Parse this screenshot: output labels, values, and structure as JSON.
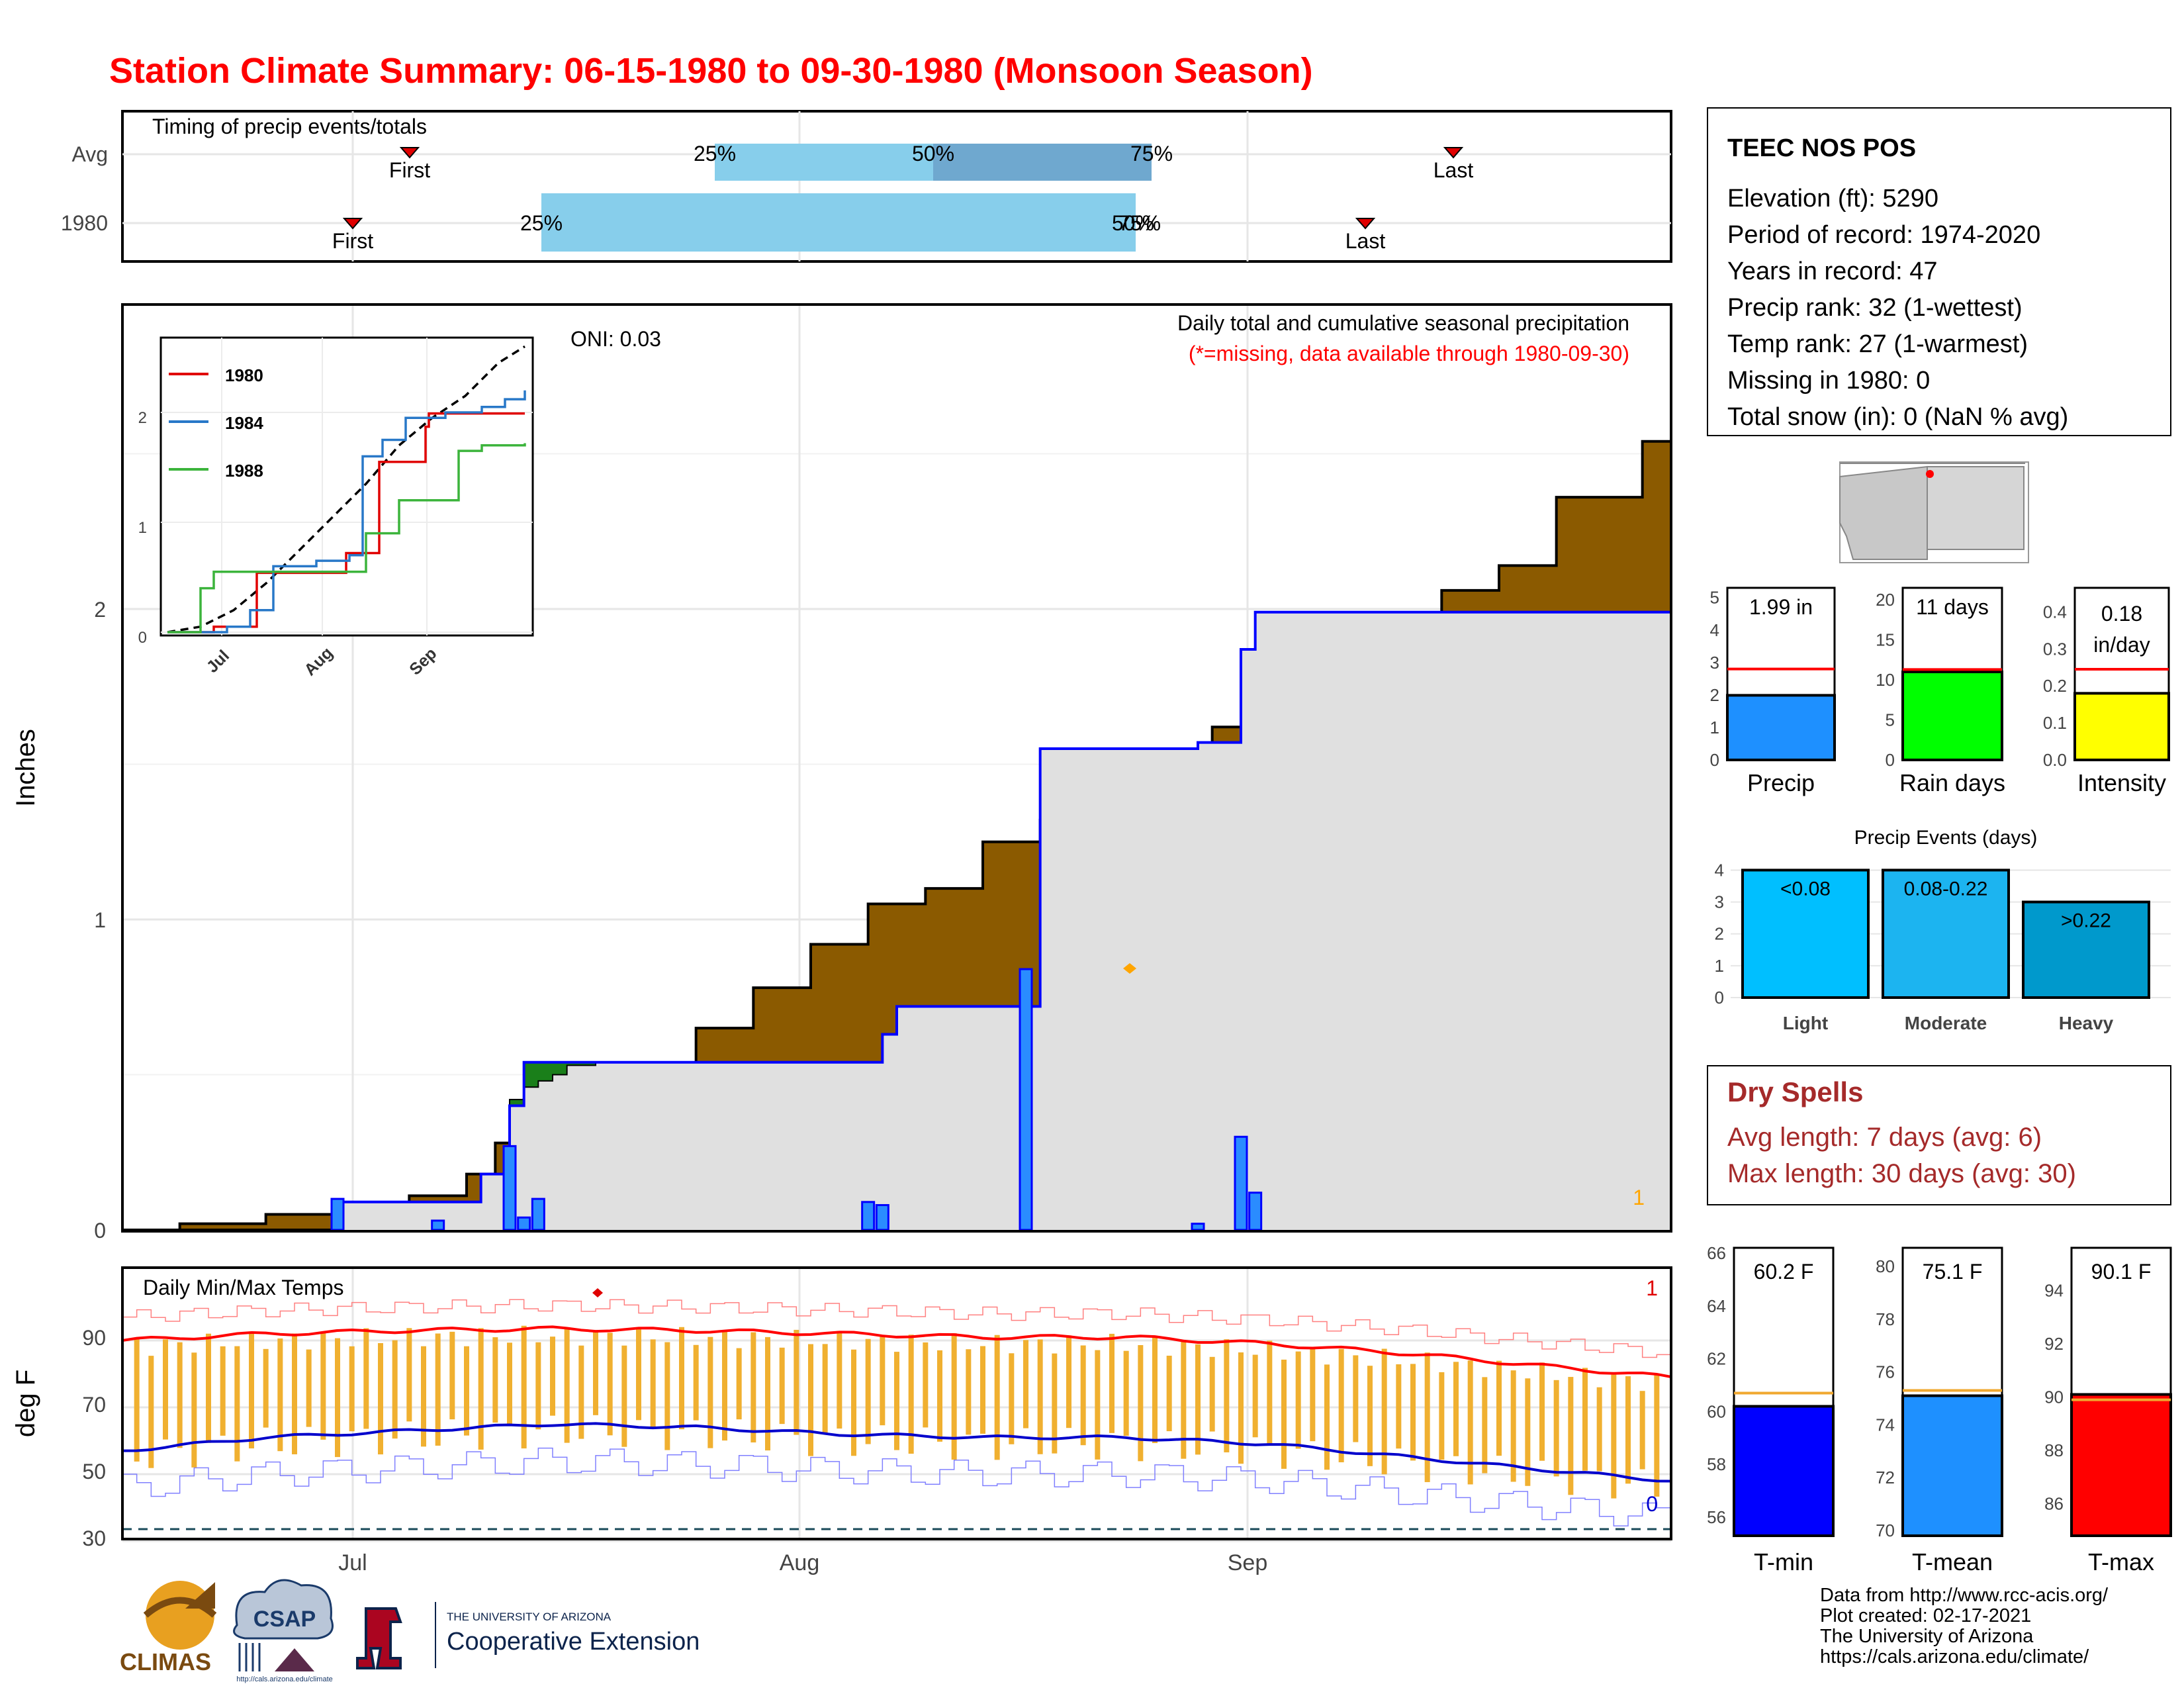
{
  "title": "Station Climate Summary: 06-15-1980 to 09-30-1980 (Monsoon Season)",
  "colors": {
    "title": "#ff0000",
    "cum_area": "#8b5a00",
    "cum_green": "#1a7f1a",
    "current_fill": "#e0e0e0",
    "current_line": "#0000ff",
    "bars": "#2a8cff",
    "timing_light": "#87ceeb",
    "timing_dark": "#6fa8cf",
    "temp_bar": "#f0b030",
    "tmax_line": "#ff0000",
    "tmin_line": "#0000cc",
    "precip_bar": "#1e90ff",
    "raindays_bar": "#00ff00",
    "intensity_bar": "#ffff00",
    "light_bar": "#00bfff",
    "moderate_bar": "#1cb4f0",
    "heavy_bar": "#0099cc",
    "tmin_bar": "#0000ff",
    "tmean_bar": "#1e90ff",
    "tmax_bar": "#ff0000",
    "dry_spell_text": "#a52a2a"
  },
  "timing": {
    "title": "Timing of precip events/totals",
    "rows": [
      {
        "label": "Avg",
        "first": "First",
        "last": "Last",
        "p25": "25%",
        "p50": "50%",
        "p75": "75%"
      },
      {
        "label": "1980",
        "first": "First",
        "last": "Last",
        "p25": "25%",
        "p50": "50%",
        "p75": "75%"
      }
    ]
  },
  "main": {
    "y_axis_label": "Inches",
    "y_ticks": [
      "0",
      "1",
      "2"
    ],
    "x_ticks": [
      "Jul",
      "Aug",
      "Sep"
    ],
    "oni": "ONI: 0.03",
    "title": "Daily total and cumulative seasonal precipitation",
    "subtitle": "(*=missing, data available through 1980-09-30)",
    "count_label": "1"
  },
  "inset": {
    "legend": [
      "1980",
      "1984",
      "1988"
    ],
    "y_ticks": [
      "0",
      "1",
      "2"
    ],
    "x_ticks": [
      "Jul",
      "Aug",
      "Sep"
    ]
  },
  "temps": {
    "title": "Daily Min/Max Temps",
    "y_axis_label": "deg F",
    "y_ticks": [
      "90",
      "70",
      "50",
      "30"
    ],
    "record_high_count": "1",
    "record_low_count": "0",
    "x_ticks": [
      "Jul",
      "Aug",
      "Sep"
    ]
  },
  "station": {
    "name": "TEEC NOS POS",
    "lines": [
      "Elevation (ft): 5290",
      "Period of record: 1974-2020",
      "Years in record: 47",
      "Precip rank: 32 (1-wettest)",
      "Temp rank: 27 (1-warmest)",
      "Missing in 1980: 0",
      "Total snow (in): 0 (NaN % avg)"
    ]
  },
  "summary_bars": {
    "precip": {
      "label": "Precip",
      "value_text": "1.99 in",
      "value": 1.99,
      "avg": 2.8,
      "ticks": [
        "5",
        "4",
        "3",
        "2",
        "1",
        "0"
      ]
    },
    "rain_days": {
      "label": "Rain days",
      "value_text": "11 days",
      "value": 11,
      "avg": 11.3,
      "ticks": [
        "20",
        "15",
        "10",
        "5",
        "0"
      ]
    },
    "intensity": {
      "label": "Intensity",
      "value_text_1": "0.18",
      "value_text_2": "in/day",
      "value": 0.18,
      "avg": 0.245,
      "ticks": [
        "0.4",
        "0.3",
        "0.2",
        "0.1",
        "0.0"
      ]
    }
  },
  "events": {
    "title": "Precip Events (days)",
    "ticks": [
      "4",
      "3",
      "2",
      "1",
      "0"
    ],
    "bars": [
      {
        "label": "Light",
        "range": "<0.08",
        "value": 4
      },
      {
        "label": "Moderate",
        "range": "0.08-0.22",
        "value": 4
      },
      {
        "label": "Heavy",
        "range": ">0.22",
        "value": 3
      }
    ]
  },
  "dry_spells": {
    "title": "Dry Spells",
    "avg": "Avg length: 7 days (avg: 6)",
    "max": "Max length: 30 days (avg: 30)"
  },
  "temp_bars": {
    "tmin": {
      "label": "T-min",
      "value_text": "60.2 F",
      "value": 60.2,
      "avg": 60.7,
      "ticks": [
        "66",
        "64",
        "62",
        "60",
        "58",
        "56"
      ]
    },
    "tmean": {
      "label": "T-mean",
      "value_text": "75.1 F",
      "value": 75.1,
      "avg": 75.3,
      "ticks": [
        "80",
        "78",
        "76",
        "74",
        "72",
        "70"
      ]
    },
    "tmax": {
      "label": "T-max",
      "value_text": "90.1 F",
      "value": 90.1,
      "avg": 89.9,
      "ticks": [
        "94",
        "92",
        "90",
        "88",
        "86"
      ]
    }
  },
  "logos": {
    "climas": "CLIMAS",
    "csap": "CSAP",
    "csap_url": "http://cals.arizona.edu/climate",
    "ua_small": "THE UNIVERSITY OF ARIZONA",
    "ua_big": "Cooperative Extension"
  },
  "footer": [
    "Data from http://www.rcc-acis.org/",
    "Plot created: 02-17-2021",
    "The University of Arizona",
    "https://cals.arizona.edu/climate/"
  ],
  "chart_data": [
    {
      "type": "area",
      "title": "Daily total and cumulative seasonal precipitation",
      "xlabel": "",
      "ylabel": "Inches",
      "x_categories": [
        "Jul",
        "Aug",
        "Sep"
      ],
      "ylim": [
        0,
        2.9
      ],
      "series": [
        {
          "values": [
            [
              0,
              0
            ],
            [
              4,
              0.02
            ],
            [
              10,
              0.05
            ],
            [
              16,
              0.08
            ],
            [
              20,
              0.11
            ],
            [
              24,
              0.18
            ],
            [
              26,
              0.28
            ],
            [
              28,
              0.42
            ],
            [
              30,
              0.48
            ],
            [
              33,
              0.53
            ],
            [
              40,
              0.65
            ],
            [
              44,
              0.78
            ],
            [
              48,
              0.92
            ],
            [
              52,
              1.05
            ],
            [
              56,
              1.1
            ],
            [
              60,
              1.25
            ],
            [
              64,
              1.32
            ],
            [
              68,
              1.48
            ],
            [
              72,
              1.5
            ],
            [
              76,
              1.62
            ],
            [
              80,
              1.75
            ],
            [
              84,
              1.85
            ],
            [
              88,
              1.97
            ],
            [
              92,
              2.06
            ],
            [
              96,
              2.14
            ],
            [
              100,
              2.36
            ],
            [
              106,
              2.54
            ],
            [
              108,
              2.6
            ]
          ]
        },
        {
          "values": [
            [
              15,
              0.09
            ],
            [
              25,
              0.18
            ],
            [
              27,
              0.4
            ],
            [
              28,
              0.54
            ],
            [
              52,
              0.54
            ],
            [
              53,
              0.63
            ],
            [
              54,
              0.72
            ],
            [
              63,
              0.72
            ],
            [
              64,
              1.55
            ],
            [
              75,
              1.57
            ],
            [
              78,
              1.87
            ],
            [
              79,
              1.99
            ],
            [
              108,
              1.99
            ]
          ]
        }
      ],
      "bars": [
        [
          15,
          0.1
        ],
        [
          22,
          0.03
        ],
        [
          27,
          0.27
        ],
        [
          28,
          0.04
        ],
        [
          29,
          0.1
        ],
        [
          52,
          0.09
        ],
        [
          53,
          0.08
        ],
        [
          63,
          0.84
        ],
        [
          75,
          0.02
        ],
        [
          78,
          0.3
        ],
        [
          79,
          0.12
        ]
      ]
    },
    {
      "type": "line",
      "title": "Daily Min/Max Temps",
      "ylabel": "deg F",
      "ylim": [
        28,
        105
      ],
      "series": [
        {
          "values": [
            [
              0,
              90
            ],
            [
              10,
              92
            ],
            [
              20,
              93
            ],
            [
              30,
              93.5
            ],
            [
              40,
              93
            ],
            [
              50,
              92
            ],
            [
              60,
              91
            ],
            [
              70,
              91
            ],
            [
              80,
              89
            ],
            [
              90,
              86
            ],
            [
              100,
              82
            ],
            [
              108,
              79
            ]
          ]
        },
        {
          "values": [
            [
              0,
              57
            ],
            [
              10,
              61
            ],
            [
              20,
              63
            ],
            [
              30,
              65
            ],
            [
              40,
              64
            ],
            [
              50,
              62
            ],
            [
              60,
              61
            ],
            [
              70,
              61
            ],
            [
              80,
              59
            ],
            [
              90,
              55
            ],
            [
              100,
              51
            ],
            [
              108,
              48
            ]
          ]
        }
      ]
    }
  ]
}
